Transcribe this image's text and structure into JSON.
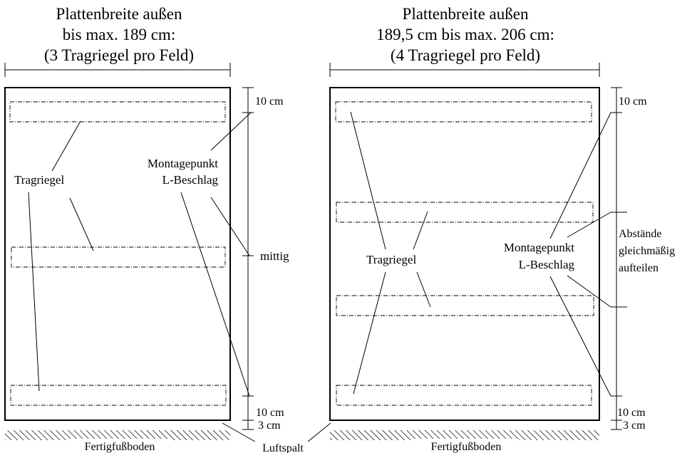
{
  "left": {
    "title": [
      "Plattenbreite außen",
      "bis max. 189 cm:",
      "(3 Tragriegel pro Feld)"
    ],
    "tragriegel_label": "Tragriegel",
    "montage_label": [
      "Montagepunkt",
      "L-Beschlag"
    ],
    "dim_top": "10 cm",
    "dim_mid": "mittig",
    "dim_bottom": "10 cm",
    "dim_gap": "3 cm",
    "floor_label": "Fertigfußboden"
  },
  "right": {
    "title": [
      "Plattenbreite außen",
      "189,5 cm bis max. 206 cm:",
      "(4 Tragriegel pro Feld)"
    ],
    "tragriegel_label": "Tragriegel",
    "montage_label": [
      "Montagepunkt",
      "L-Beschlag"
    ],
    "dim_top": "10 cm",
    "dim_note": [
      "Abstände",
      "gleichmäßig",
      "aufteilen"
    ],
    "dim_bottom": "10 cm",
    "dim_gap": "3 cm",
    "floor_label": "Fertigfußboden"
  },
  "luftspalt_label": "Luftspalt"
}
